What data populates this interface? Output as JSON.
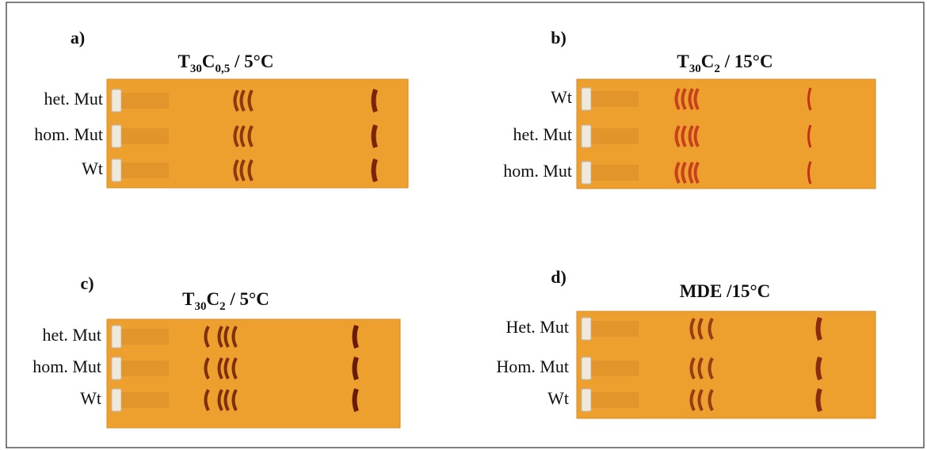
{
  "panels": [
    {
      "label": "a)",
      "title": [
        {
          "text": "T"
        },
        {
          "text": "30",
          "sub": true
        },
        {
          "text": "C"
        },
        {
          "text": "0,5",
          "sub": true
        },
        {
          "text": " / 5°C"
        }
      ],
      "lanes": [
        "het. Mut",
        "hom. Mut",
        "Wt"
      ]
    },
    {
      "label": "b)",
      "title": [
        {
          "text": "T"
        },
        {
          "text": "30",
          "sub": true
        },
        {
          "text": "C"
        },
        {
          "text": "2",
          "sub": true
        },
        {
          "text": " / 15°C"
        }
      ],
      "lanes": [
        "Wt",
        "het. Mut",
        "hom. Mut"
      ]
    },
    {
      "label": "c)",
      "title": [
        {
          "text": "T"
        },
        {
          "text": "30",
          "sub": true
        },
        {
          "text": "C"
        },
        {
          "text": "2",
          "sub": true
        },
        {
          "text": " / 5°C"
        }
      ],
      "lanes": [
        "het. Mut",
        "hom. Mut",
        "Wt"
      ]
    },
    {
      "label": "d)",
      "title": [
        {
          "text": "MDE /15°C"
        }
      ],
      "lanes": [
        "Het. Mut",
        "Hom. Mut",
        "Wt"
      ]
    }
  ]
}
